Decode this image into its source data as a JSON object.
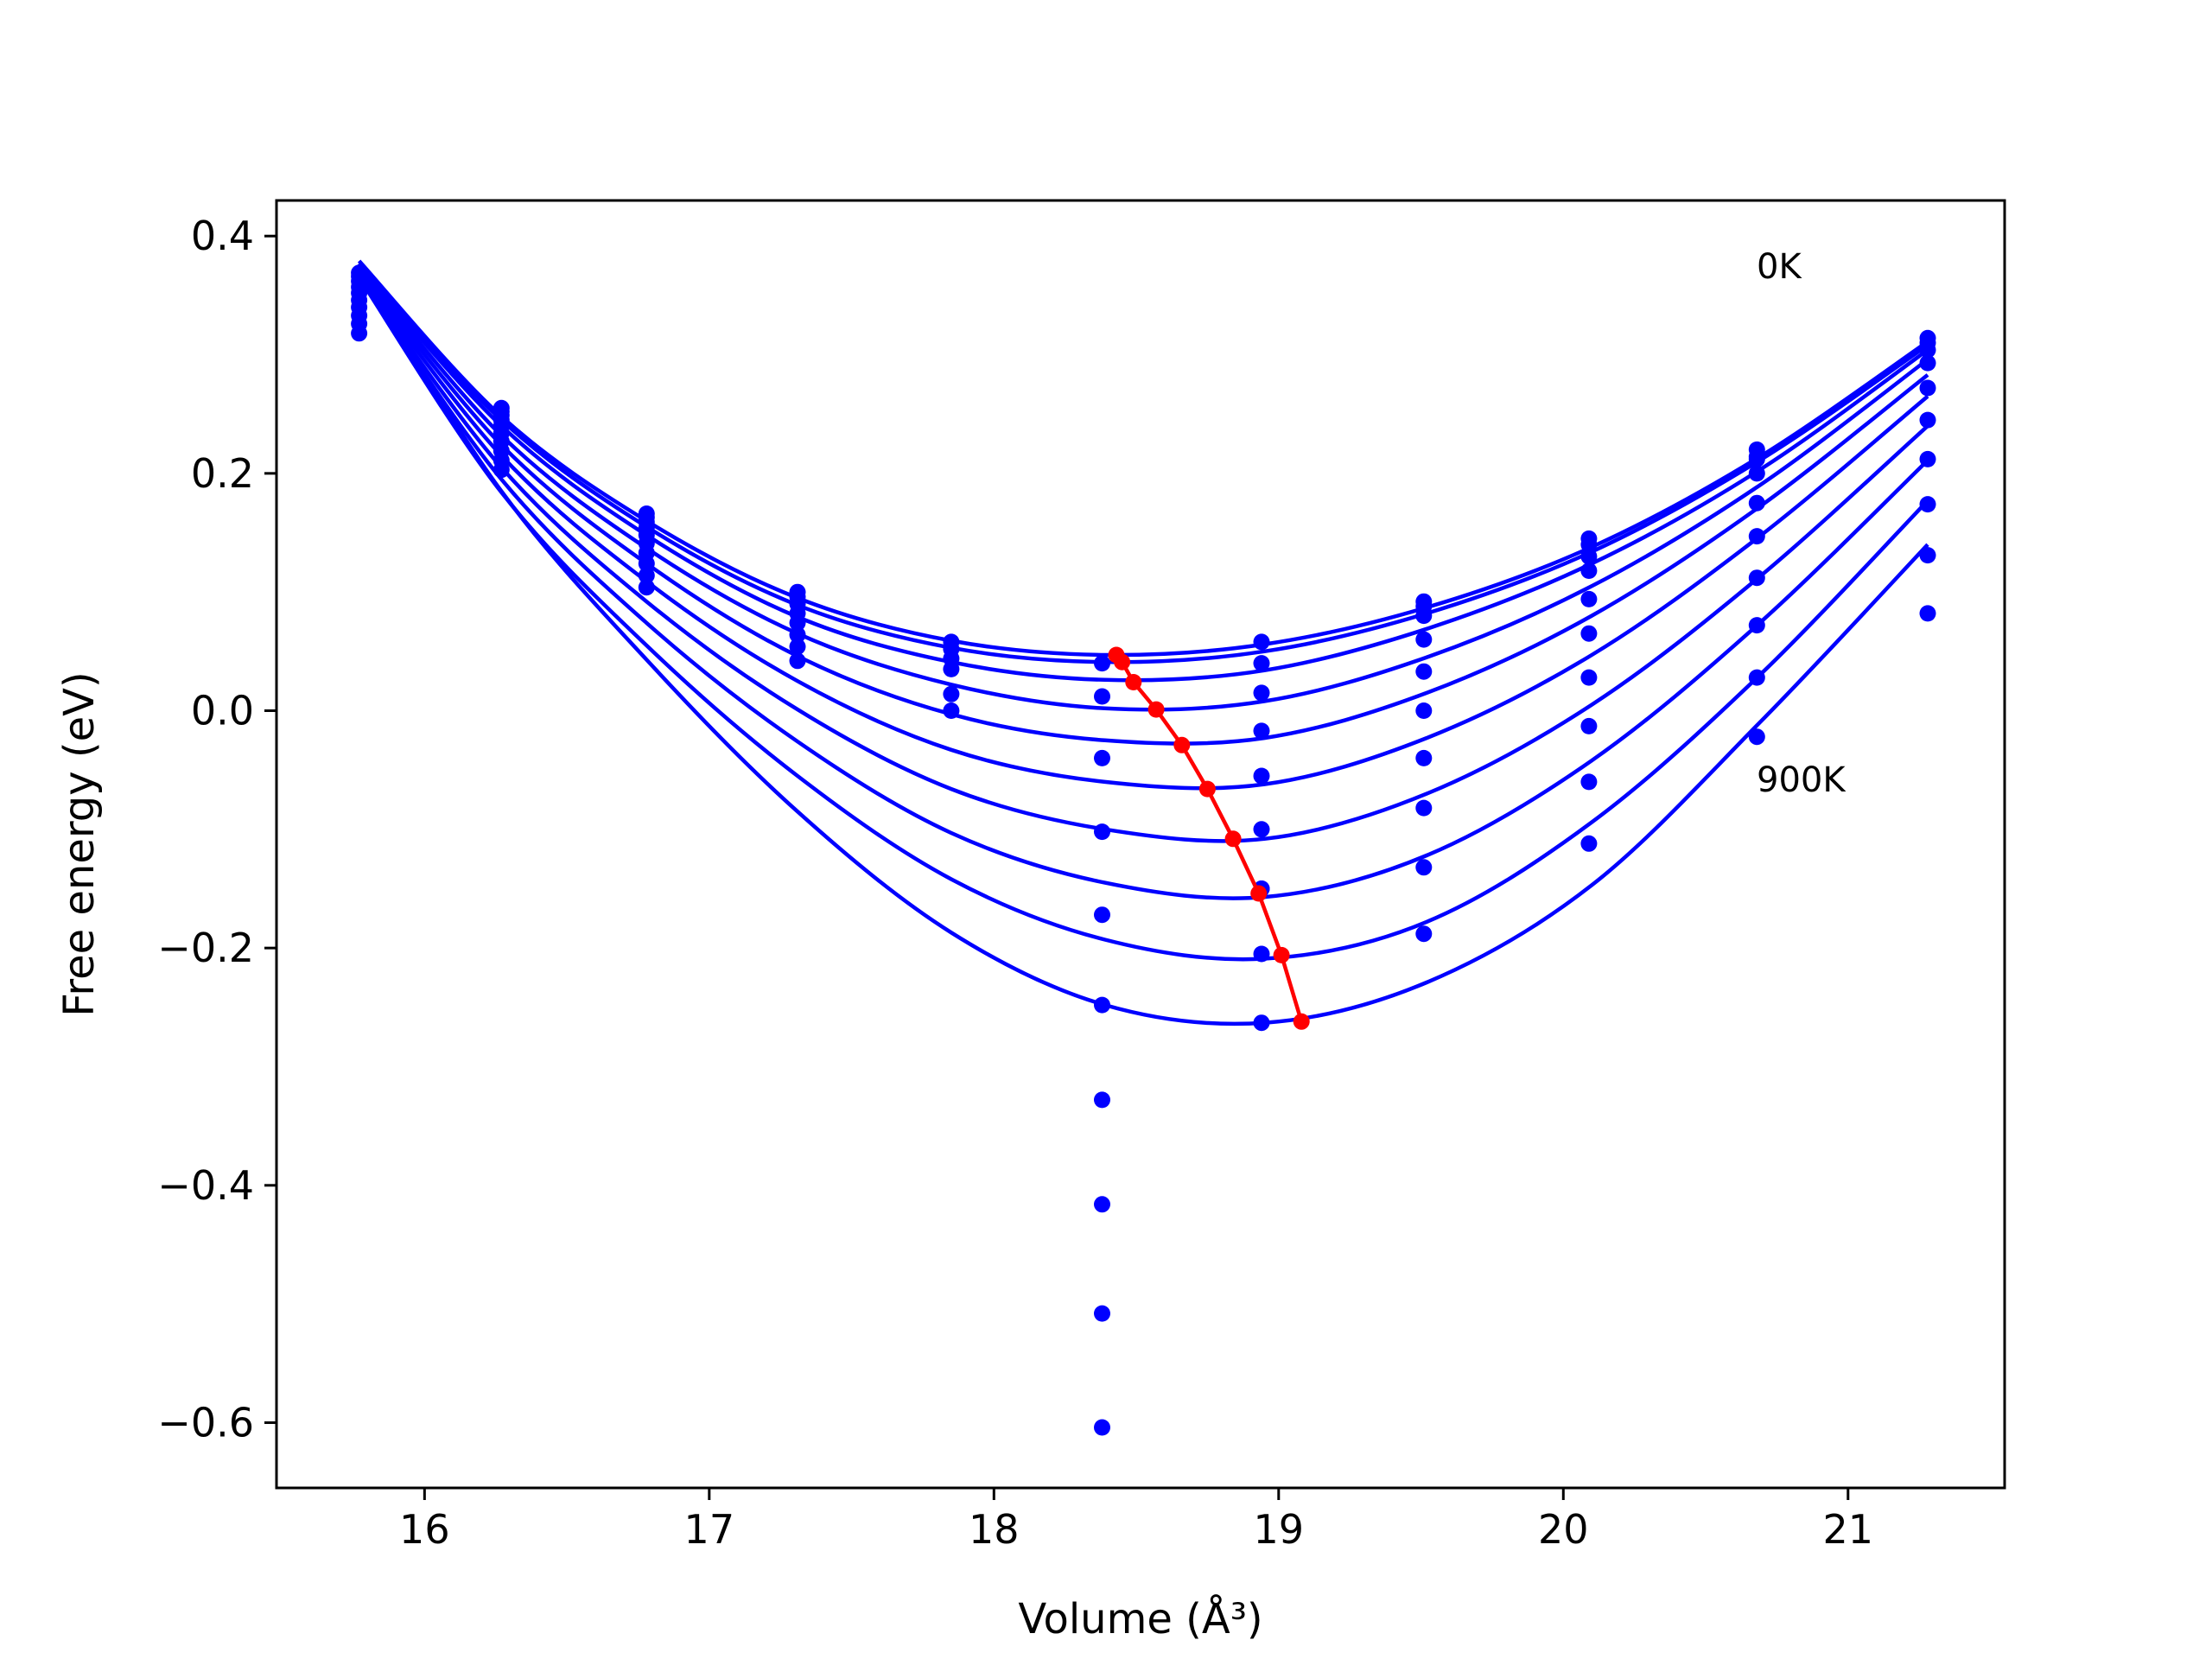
{
  "chart_data": {
    "type": "line",
    "xlabel": "Volume (Å³)",
    "ylabel": "Free energy (eV)",
    "xlim": [
      15.48,
      21.55
    ],
    "ylim": [
      -0.655,
      0.43
    ],
    "xticks": [
      16,
      17,
      18,
      19,
      20,
      21
    ],
    "yticks": [
      0.4,
      0.2,
      0.0,
      -0.2,
      -0.4,
      -0.6
    ],
    "xtick_labels": [
      "16",
      "17",
      "18",
      "19",
      "20",
      "21"
    ],
    "ytick_labels": [
      "0.4",
      "0.2",
      "0.0",
      "−0.2",
      "−0.4",
      "−0.6"
    ],
    "grid": false,
    "annotations": [
      {
        "text": "0K",
        "x": 20.69,
        "y": 0.37
      },
      {
        "text": "900K",
        "x": 20.69,
        "y": -0.06
      }
    ],
    "series": [
      {
        "color": "#0000ff",
        "fit_x": [
          15.77,
          16.27,
          16.78,
          17.31,
          17.85,
          18.39,
          18.95,
          19.52,
          20.1,
          20.69,
          21.28
        ],
        "fit_y": [
          0.379,
          0.248,
          0.16,
          0.095,
          0.059,
          0.047,
          0.056,
          0.087,
          0.138,
          0.214,
          0.311
        ]
      },
      {
        "color": "#0000ff",
        "fit_x": [
          15.77,
          16.27,
          16.78,
          17.31,
          17.85,
          18.39,
          18.95,
          19.52,
          20.1,
          20.69,
          21.28
        ],
        "fit_y": [
          0.377,
          0.245,
          0.155,
          0.089,
          0.053,
          0.041,
          0.05,
          0.082,
          0.134,
          0.211,
          0.308
        ]
      },
      {
        "color": "#0000ff",
        "fit_x": [
          15.77,
          16.27,
          16.78,
          17.31,
          17.85,
          18.39,
          18.95,
          19.52,
          20.1,
          20.69,
          21.28
        ],
        "fit_y": [
          0.375,
          0.24,
          0.148,
          0.079,
          0.041,
          0.026,
          0.034,
          0.069,
          0.124,
          0.203,
          0.304
        ]
      },
      {
        "color": "#0000ff",
        "fit_x": [
          15.77,
          16.27,
          16.78,
          17.31,
          17.85,
          18.39,
          18.95,
          19.52,
          20.1,
          20.69,
          21.28
        ],
        "fit_y": [
          0.373,
          0.232,
          0.137,
          0.065,
          0.022,
          0.002,
          0.008,
          0.045,
          0.105,
          0.19,
          0.296
        ]
      },
      {
        "color": "#0000ff",
        "fit_x": [
          15.77,
          16.27,
          16.78,
          17.31,
          17.85,
          18.39,
          18.95,
          19.52,
          20.1,
          20.69,
          21.28
        ],
        "fit_y": [
          0.371,
          0.224,
          0.124,
          0.046,
          -0.003,
          -0.025,
          -0.023,
          0.015,
          0.08,
          0.172,
          0.283
        ]
      },
      {
        "color": "#0000ff",
        "fit_x": [
          15.77,
          16.27,
          16.78,
          17.31,
          17.85,
          18.39,
          18.95,
          19.52,
          20.1,
          20.69,
          21.28
        ],
        "fit_y": [
          0.369,
          0.215,
          0.109,
          0.025,
          -0.033,
          -0.06,
          -0.062,
          -0.023,
          0.047,
          0.147,
          0.265
        ]
      },
      {
        "color": "#0000ff",
        "fit_x": [
          15.77,
          16.27,
          16.78,
          17.31,
          17.85,
          18.39,
          18.95,
          19.52,
          20.1,
          20.69,
          21.28
        ],
        "fit_y": [
          0.367,
          0.205,
          0.092,
          0.001,
          -0.066,
          -0.1,
          -0.108,
          -0.07,
          0.005,
          0.113,
          0.24
        ]
      },
      {
        "color": "#0000ff",
        "fit_x": [
          15.77,
          16.27,
          16.78,
          17.31,
          17.85,
          18.39,
          18.95,
          19.52,
          20.1,
          20.69,
          21.28
        ],
        "fit_y": [
          0.366,
          0.195,
          0.074,
          -0.026,
          -0.103,
          -0.145,
          -0.157,
          -0.122,
          -0.042,
          0.074,
          0.211
        ]
      },
      {
        "color": "#0000ff",
        "fit_x": [
          15.77,
          16.27,
          16.78,
          17.31,
          17.85,
          18.39,
          18.95,
          19.52,
          20.1,
          20.69,
          21.28
        ],
        "fit_y": [
          0.365,
          0.184,
          0.055,
          -0.055,
          -0.142,
          -0.193,
          -0.209,
          -0.178,
          -0.094,
          0.03,
          0.177
        ]
      },
      {
        "color": "#0000ff",
        "fit_x": [
          15.77,
          16.27,
          16.78,
          17.31,
          17.85,
          18.39,
          18.95,
          19.52,
          20.1,
          20.69,
          21.28
        ],
        "fit_y": [
          0.372,
          0.185,
          0.043,
          -0.085,
          -0.187,
          -0.248,
          -0.263,
          -0.229,
          -0.147,
          -0.01,
          0.14
        ]
      }
    ],
    "data_points": {
      "color": "#0000ff",
      "x": [
        15.77,
        15.77,
        15.77,
        15.77,
        15.77,
        15.77,
        15.77,
        15.77,
        15.77,
        15.77,
        16.27,
        16.27,
        16.27,
        16.27,
        16.27,
        16.27,
        16.27,
        16.27,
        16.27,
        16.27,
        16.78,
        16.78,
        16.78,
        16.78,
        16.78,
        16.78,
        16.78,
        16.78,
        16.78,
        16.78,
        17.31,
        17.31,
        17.31,
        17.31,
        17.31,
        17.31,
        17.31,
        17.31,
        17.85,
        17.85,
        17.85,
        17.85,
        17.85,
        17.85,
        18.38,
        18.38,
        18.38,
        18.38,
        18.38,
        18.38,
        18.38,
        18.38,
        18.38,
        18.38,
        18.94,
        18.94,
        18.94,
        18.94,
        18.94,
        18.94,
        18.94,
        18.94,
        18.94,
        18.94,
        19.51,
        19.51,
        19.51,
        19.51,
        19.51,
        19.51,
        19.51,
        19.51,
        19.51,
        19.51,
        20.09,
        20.09,
        20.09,
        20.09,
        20.09,
        20.09,
        20.09,
        20.09,
        20.09,
        20.09,
        20.68,
        20.68,
        20.68,
        20.68,
        20.68,
        20.68,
        20.68,
        20.68,
        20.68,
        20.68,
        21.28,
        21.28,
        21.28,
        21.28,
        21.28,
        21.28,
        21.28,
        21.28,
        21.28,
        21.28
      ],
      "y": [
        0.369,
        0.366,
        0.362,
        0.357,
        0.352,
        0.346,
        0.34,
        0.333,
        0.326,
        0.318,
        0.255,
        0.252,
        0.249,
        0.245,
        0.24,
        0.234,
        0.227,
        0.219,
        0.211,
        0.203,
        0.166,
        0.163,
        0.159,
        0.154,
        0.148,
        0.141,
        0.133,
        0.124,
        0.114,
        0.104,
        0.1,
        0.096,
        0.09,
        0.082,
        0.074,
        0.064,
        0.054,
        0.042,
        0.058,
        0.052,
        0.044,
        0.035,
        0.014,
        0.0,
        0.04,
        0.012,
        -0.04,
        -0.102,
        -0.172,
        -0.248,
        -0.328,
        -0.416,
        -0.508,
        -0.604,
        0.058,
        0.04,
        0.015,
        -0.017,
        -0.055,
        -0.1,
        -0.15,
        -0.205,
        -0.263,
        -0.15,
        0.092,
        0.08,
        0.06,
        0.033,
        0.0,
        -0.04,
        -0.082,
        -0.132,
        -0.188,
        0.088,
        0.145,
        0.13,
        0.118,
        0.094,
        0.065,
        0.028,
        -0.013,
        -0.06,
        -0.112,
        0.14,
        0.22,
        0.214,
        0.2,
        0.175,
        0.147,
        0.112,
        0.072,
        0.028,
        -0.022,
        0.212,
        0.314,
        0.31,
        0.304,
        0.293,
        0.272,
        0.245,
        0.212,
        0.174,
        0.131,
        0.082
      ]
    },
    "minima_line": {
      "color": "#ff0000",
      "x": [
        18.43,
        18.45,
        18.49,
        18.57,
        18.66,
        18.75,
        18.84,
        18.93,
        19.01,
        19.08
      ],
      "y": [
        0.047,
        0.041,
        0.024,
        0.001,
        -0.029,
        -0.066,
        -0.108,
        -0.154,
        -0.206,
        -0.262
      ]
    }
  }
}
